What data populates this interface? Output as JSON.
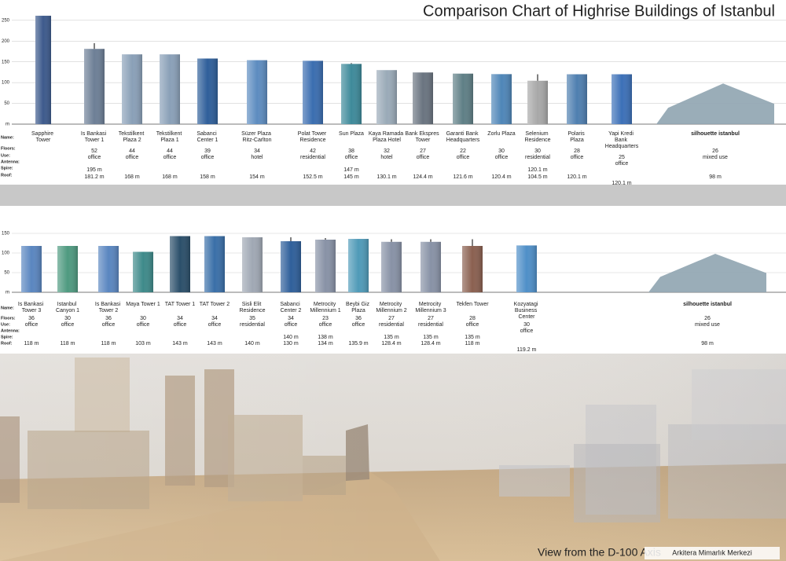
{
  "title": "Comparison Chart of Highrise Buildings of Istanbul",
  "caption": "View from the D-100 Axis",
  "watermark": "Arkitera Mimarlık Merkezi",
  "chart_data": [
    {
      "type": "bar",
      "row_labels": [
        "Name:",
        "Floors:",
        "Use:",
        "Antenna:",
        "Spire:",
        "Roof:"
      ],
      "categories": [
        "Sapphire Tower",
        "Is Bankasi Tower 1",
        "Tekstilkent Plaza 2",
        "Tekstilkent Plaza 1",
        "Sabanci Center 1",
        "Süzer Plaza Ritz-Carlton",
        "Polat Tower Residence",
        "Sun Plaza",
        "Kaya Ramada Plaza Hotel",
        "Bank Ekspres Tower",
        "Garanti Bank Headquarters",
        "Zorlu Plaza",
        "Selenium Residence",
        "Polaris Plaza",
        "Yapi Kredi Bank Headquarters",
        "silhouette istanbul"
      ],
      "values": [
        261,
        181.2,
        168,
        168,
        158,
        154,
        152.5,
        145,
        130.1,
        124.4,
        121.6,
        120.4,
        104.5,
        120.1,
        120.1,
        98
      ],
      "value_labels": [
        null,
        "181.2 m",
        "168 m",
        "168 m",
        "158 m",
        "154 m",
        "152.5 m",
        "145 m",
        "130.1 m",
        "124.4 m",
        "121.6 m",
        "120.4 m",
        "104.5 m",
        "120.1 m",
        "120.1 m",
        "98 m"
      ],
      "floors": [
        null,
        52,
        44,
        44,
        39,
        34,
        42,
        38,
        32,
        27,
        22,
        30,
        30,
        28,
        25,
        26
      ],
      "use": [
        null,
        "office",
        "office",
        "office",
        "office",
        "hotel",
        "residential",
        "office",
        "hotel",
        "office",
        "office",
        "office",
        "residential",
        "office",
        "office",
        "mixed use"
      ],
      "spire": [
        null,
        195,
        null,
        null,
        null,
        null,
        null,
        147,
        null,
        null,
        null,
        null,
        120.1,
        null,
        null,
        null
      ],
      "spire_labels": [
        null,
        "195 m",
        null,
        null,
        null,
        null,
        null,
        "147 m",
        null,
        null,
        null,
        null,
        "120.1 m",
        null,
        null,
        null
      ],
      "colors": [
        "#3d5a8c",
        "#6d7f96",
        "#8aa0b8",
        "#8aa0b8",
        "#2f5f9a",
        "#5d8cc0",
        "#3a6db0",
        "#3e8a9a",
        "#9aaab8",
        "#6a7480",
        "#5f7f86",
        "#4f86b8",
        "#a8a8a8",
        "#4f7fb0",
        "#3c70b8",
        "#8fa4b0"
      ],
      "ylim": [
        0,
        280
      ],
      "yticks": [
        {
          "value": 0,
          "label": "m"
        },
        50,
        100,
        150,
        200,
        250
      ],
      "grid": true
    },
    {
      "type": "bar",
      "row_labels": [
        "Name:",
        "Floors:",
        "Use:",
        "Antenna:",
        "Spire:",
        "Roof:"
      ],
      "categories": [
        "Is Bankasi Tower 3",
        "Istanbul Canyon 1",
        "Is Bankasi Tower 2",
        "Maya Tower 1",
        "TAT Tower 1",
        "TAT Tower 2",
        "Sisli Elit Residence",
        "Sabanci Center 2",
        "Metrocity Millennium 1",
        "Beybi Giz Plaza",
        "Metrocity Millennium 2",
        "Metrocity Millennium 3",
        "Tekfen Tower",
        "Kozyatagi Business Center",
        "silhouette istanbul"
      ],
      "values": [
        118,
        118,
        118,
        103,
        143,
        143,
        140,
        130,
        134,
        135.9,
        128.4,
        128.4,
        118,
        119.2,
        98
      ],
      "value_labels": [
        "118 m",
        "118 m",
        "118 m",
        "103 m",
        "143 m",
        "143 m",
        "140 m",
        "130 m",
        "134 m",
        "135.9 m",
        "128.4 m",
        "128.4 m",
        "118 m",
        "119.2 m",
        "98 m"
      ],
      "floors": [
        36,
        30,
        36,
        30,
        34,
        34,
        35,
        34,
        23,
        36,
        27,
        27,
        28,
        30,
        26
      ],
      "use": [
        "office",
        "office",
        "office",
        "office",
        "office",
        "office",
        "residential",
        "office",
        "office",
        "office",
        "residential",
        "residential",
        "office",
        "office",
        "mixed use"
      ],
      "spire": [
        null,
        null,
        null,
        null,
        null,
        null,
        null,
        140,
        138,
        null,
        135,
        135,
        135,
        null,
        null
      ],
      "spire_labels": [
        null,
        null,
        null,
        null,
        null,
        null,
        null,
        "140 m",
        "138 m",
        null,
        "135 m",
        "135 m",
        "135 m",
        null,
        null
      ],
      "colors": [
        "#5a86c0",
        "#4f9a80",
        "#5a86c0",
        "#3e8a8a",
        "#2b4f6a",
        "#3a6fa8",
        "#a0a8b4",
        "#2f5f9a",
        "#8892a6",
        "#4f9ab8",
        "#8892a6",
        "#8892a6",
        "#8a6050",
        "#4f8fc8",
        "#8fa4b0"
      ],
      "ylim": [
        0,
        160
      ],
      "yticks": [
        {
          "value": 0,
          "label": "m"
        },
        50,
        100,
        150
      ],
      "grid": true
    }
  ]
}
